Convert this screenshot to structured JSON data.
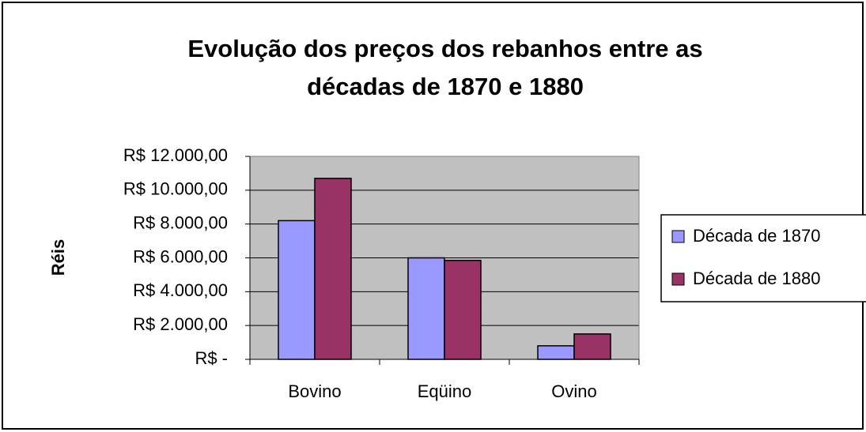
{
  "chart_data": {
    "type": "bar",
    "title": "Evolução dos preços dos rebanhos entre as décadas de 1870 e 1880",
    "y_label": "Réis",
    "categories": [
      "Bovino",
      "Eqüino",
      "Ovino"
    ],
    "series": [
      {
        "name": "Década de 1870",
        "color": "#9999ff",
        "values": [
          8200,
          6000,
          800
        ]
      },
      {
        "name": "Década de 1880",
        "color": "#993366",
        "values": [
          10700,
          5850,
          1500
        ]
      }
    ],
    "ylim": [
      0,
      12000
    ],
    "yticks": [
      {
        "value": 0,
        "label": "R$ -"
      },
      {
        "value": 2000,
        "label": "R$ 2.000,00"
      },
      {
        "value": 4000,
        "label": "R$ 4.000,00"
      },
      {
        "value": 6000,
        "label": "R$ 6.000,00"
      },
      {
        "value": 8000,
        "label": "R$ 8.000,00"
      },
      {
        "value": 10000,
        "label": "R$ 10.000,00"
      },
      {
        "value": 12000,
        "label": "R$ 12.000,00"
      }
    ],
    "grid": true,
    "legend": "right"
  }
}
